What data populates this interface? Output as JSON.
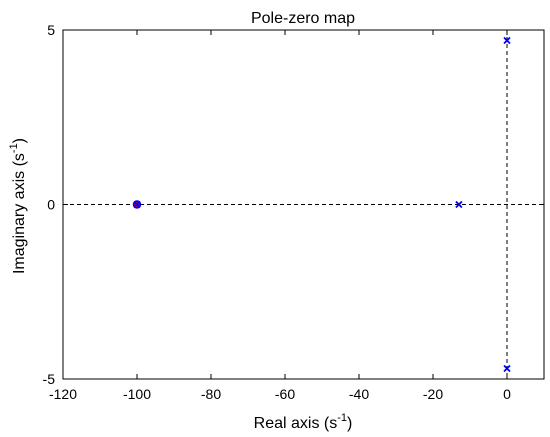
{
  "chart_data": {
    "type": "scatter",
    "title": "Pole-zero map",
    "xlabel": {
      "text": "Real axis (s",
      "sup": "-1",
      "close": ")"
    },
    "ylabel": {
      "text": "Imaginary axis (s",
      "sup": "-1",
      "close": ")"
    },
    "xlim": [
      -120,
      10
    ],
    "ylim": [
      -5,
      5
    ],
    "xticks": [
      -120,
      -100,
      -80,
      -60,
      -40,
      -20,
      0
    ],
    "yticks": [
      -5,
      0,
      5
    ],
    "grid": false,
    "reference_lines": {
      "x": 0,
      "y": 0,
      "style": "dashed"
    },
    "poles": [
      {
        "x": -100,
        "y": 0
      },
      {
        "x": -13,
        "y": 0
      },
      {
        "x": 0,
        "y": 4.7
      },
      {
        "x": 0,
        "y": -4.7
      }
    ],
    "zeros": [
      {
        "x": -100,
        "y": 0
      }
    ],
    "colors": {
      "pole": "#0000ff",
      "zero": "#0000ff",
      "zero_fill": "#cc0000",
      "reference": "#000000"
    }
  }
}
